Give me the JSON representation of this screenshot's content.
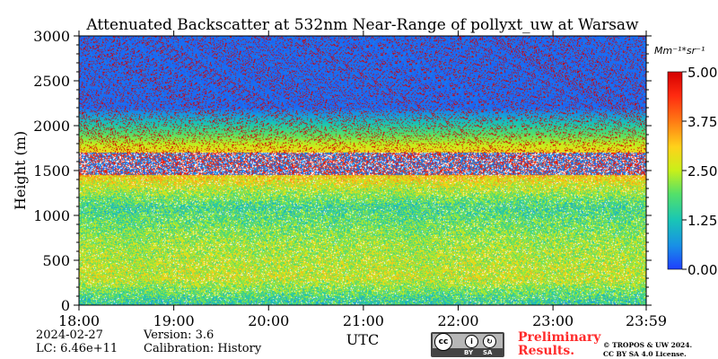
{
  "chart_data": {
    "type": "heatmap",
    "title": "Attenuated Backscatter at 532nm Near-Range of pollyxt_uw at Warsaw",
    "xlabel": "UTC",
    "ylabel": "Height (m)",
    "x_ticks": [
      "18:00",
      "19:00",
      "20:00",
      "21:00",
      "22:00",
      "23:00",
      "23:59"
    ],
    "y_ticks": [
      "0",
      "500",
      "1000",
      "1500",
      "2000",
      "2500",
      "3000"
    ],
    "ylim": [
      0,
      3000
    ],
    "colorbar": {
      "unit": "Mm⁻¹*sr⁻¹",
      "ticks": [
        "0.00",
        "1.25",
        "2.50",
        "3.75",
        "5.00"
      ],
      "range": [
        0,
        5
      ],
      "colormap": [
        "#1f3fff",
        "#1890e6",
        "#19c6b5",
        "#53e06a",
        "#c8f01a",
        "#ffd21a",
        "#ff7a14",
        "#ff2a10",
        "#d40000"
      ]
    },
    "profile_description": [
      {
        "height_m": 50,
        "level": 1.5
      },
      {
        "height_m": 300,
        "level": 2.6
      },
      {
        "height_m": 700,
        "level": 2.3
      },
      {
        "height_m": 1100,
        "level": 1.6
      },
      {
        "height_m": 1550,
        "level": 3.6
      },
      {
        "height_m": 2200,
        "level": 0.2
      }
    ]
  },
  "info": {
    "date": "2024-02-27",
    "lc": "LC: 6.46e+11",
    "version": "Version: 3.6",
    "calibration": "Calibration: History"
  },
  "license": {
    "preliminary": [
      "Preliminary",
      "Results."
    ],
    "copyright": [
      "© TROPOS & UW 2024.",
      "CC BY SA 4.0 License."
    ],
    "badge_by": "BY",
    "badge_sa": "SA"
  }
}
